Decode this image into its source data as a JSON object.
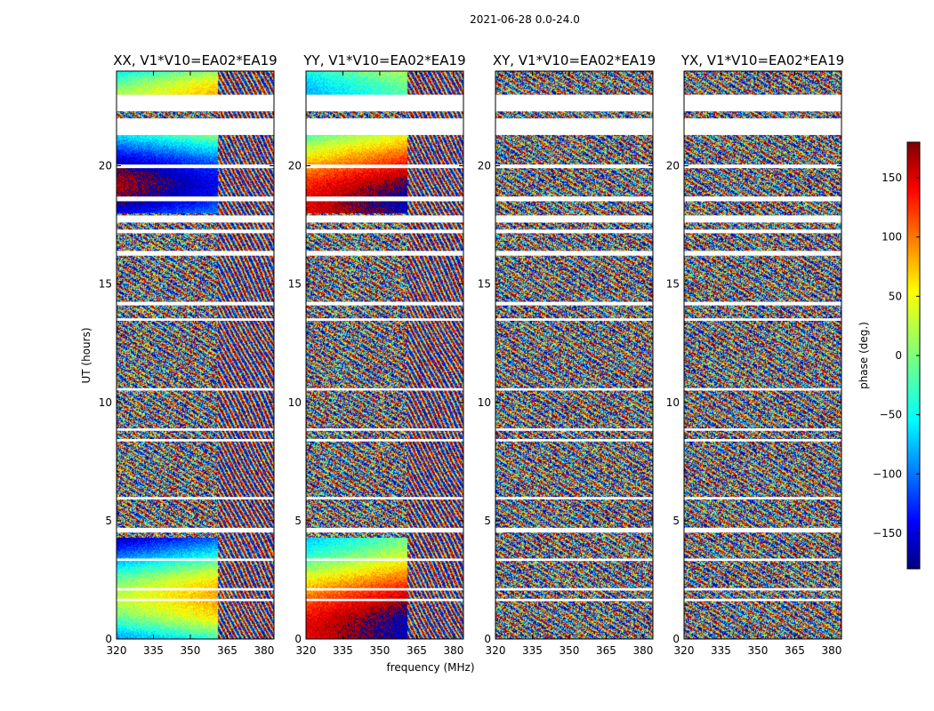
{
  "chart_data": {
    "type": "heatmap",
    "title": "2021-06-28 0.0-24.0",
    "xlabel": "frequency (MHz)",
    "ylabel": "UT (hours)",
    "xlim": [
      320,
      384
    ],
    "ylim": [
      0,
      24
    ],
    "x_ticks": [
      320,
      335,
      350,
      365,
      380
    ],
    "y_ticks": [
      0,
      5,
      10,
      15,
      20
    ],
    "panels": [
      {
        "title": "XX, V1*V10=EA02*EA19",
        "polarization": "XX"
      },
      {
        "title": "YY, V1*V10=EA02*EA19",
        "polarization": "YY"
      },
      {
        "title": "XY, V1*V10=EA02*EA19",
        "polarization": "XY"
      },
      {
        "title": "YX, V1*V10=EA02*EA19",
        "polarization": "YX"
      }
    ],
    "colorbar": {
      "label": "phase (deg.)",
      "min": -180,
      "max": 180,
      "ticks": [
        150,
        100,
        50,
        0,
        -50,
        -100,
        -150
      ],
      "colormap": "jet"
    },
    "flagged_time_ranges_hours": [
      [
        22.3,
        23.0
      ],
      [
        21.3,
        22.0
      ],
      [
        19.9,
        20.05
      ],
      [
        18.5,
        18.7
      ],
      [
        17.6,
        17.9
      ],
      [
        17.15,
        17.3
      ],
      [
        16.2,
        16.4
      ],
      [
        14.1,
        14.25
      ],
      [
        13.45,
        13.55
      ],
      [
        10.5,
        10.6
      ],
      [
        8.8,
        8.9
      ],
      [
        8.35,
        8.45
      ],
      [
        5.9,
        6.0
      ],
      [
        4.5,
        4.7
      ],
      [
        3.3,
        3.4
      ],
      [
        2.05,
        2.15
      ],
      [
        1.6,
        1.7
      ]
    ]
  }
}
